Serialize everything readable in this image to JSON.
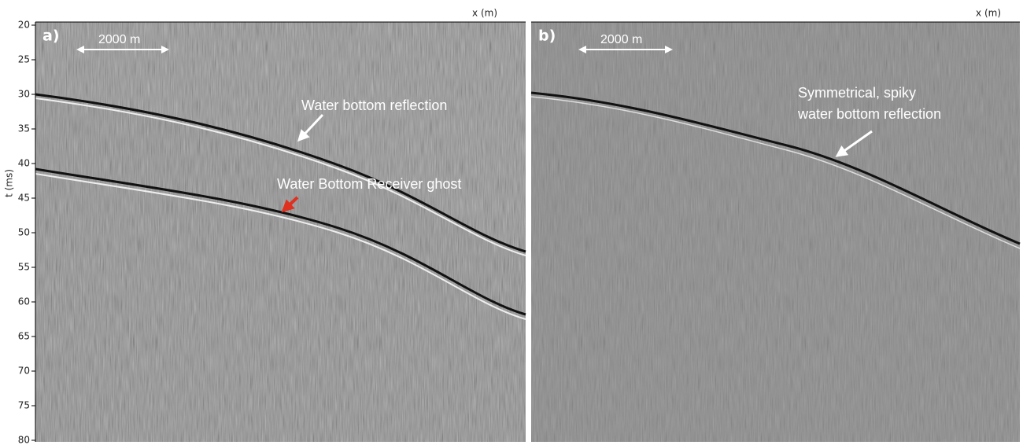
{
  "y_axis": {
    "label": "t (ms)",
    "lim": [
      20,
      80
    ],
    "ticks": [
      20,
      25,
      30,
      35,
      40,
      45,
      50,
      55,
      60,
      65,
      70,
      75,
      80
    ]
  },
  "panels": [
    {
      "label": "a)",
      "x_label": "x (m)",
      "scale_bar": "2000 m",
      "annotations": [
        "Water bottom reflection",
        "Water Bottom Receiver ghost"
      ]
    },
    {
      "label": "b)",
      "x_label": "x (m)",
      "scale_bar": "2000 m",
      "annotations": [
        "Symmetrical, spiky",
        "water bottom reflection"
      ]
    }
  ]
}
